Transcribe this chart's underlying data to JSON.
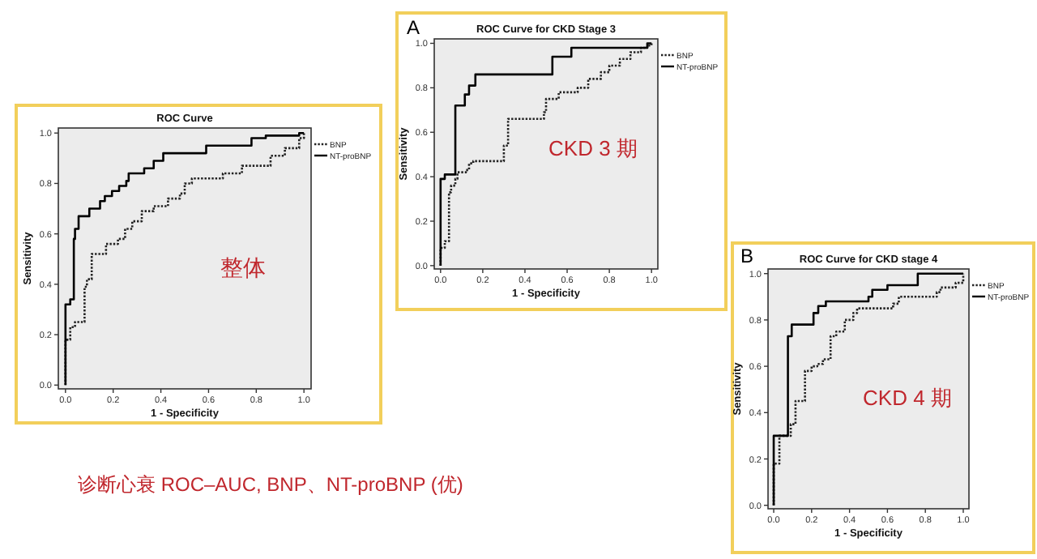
{
  "chart_data": [
    {
      "type": "step",
      "title": "ROC Curve",
      "xlabel": "1 - Specificity",
      "ylabel": "Sensitivity",
      "xlim": [
        -0.03,
        1.03
      ],
      "ylim": [
        -0.015,
        1.02
      ],
      "xticks": [
        {
          "value": 0,
          "label": "0.0"
        },
        {
          "value": 0.2,
          "label": "0.2"
        },
        {
          "value": 0.4,
          "label": "0.4"
        },
        {
          "value": 0.6,
          "label": "0.6"
        },
        {
          "value": 0.8,
          "label": "0.8"
        },
        {
          "value": 1,
          "label": "1.0"
        }
      ],
      "yticks": [
        {
          "value": 0,
          "label": "0.0"
        },
        {
          "value": 0.2,
          "label": "0.2"
        },
        {
          "value": 0.4,
          "label": "0.4"
        },
        {
          "value": 0.6,
          "label": "0.6"
        },
        {
          "value": 0.8,
          "label": "0.8"
        },
        {
          "value": 1,
          "label": "1.0"
        }
      ],
      "grid": false,
      "legend": "right",
      "series": [
        {
          "name": "BNP",
          "color": "#222222",
          "line_style": "dotted",
          "x": [
            0,
            0,
            0.02,
            0.04,
            0.08,
            0.09,
            0.11,
            0.17,
            0.22,
            0.25,
            0.28,
            0.32,
            0.37,
            0.43,
            0.48,
            0.5,
            0.53,
            0.66,
            0.74,
            0.86,
            0.92,
            0.98,
            1
          ],
          "values": [
            0,
            0.18,
            0.23,
            0.25,
            0.39,
            0.42,
            0.52,
            0.56,
            0.58,
            0.62,
            0.65,
            0.69,
            0.71,
            0.74,
            0.76,
            0.8,
            0.82,
            0.84,
            0.87,
            0.91,
            0.94,
            0.98,
            1
          ]
        },
        {
          "name": "NT-proBNP",
          "color": "#000000",
          "line_style": "solid",
          "x": [
            0,
            0,
            0.02,
            0.035,
            0.04,
            0.055,
            0.1,
            0.145,
            0.165,
            0.195,
            0.225,
            0.255,
            0.265,
            0.33,
            0.37,
            0.41,
            0.59,
            0.78,
            0.84,
            0.98,
            1
          ],
          "values": [
            0,
            0.32,
            0.34,
            0.58,
            0.62,
            0.67,
            0.7,
            0.73,
            0.75,
            0.77,
            0.79,
            0.81,
            0.84,
            0.86,
            0.89,
            0.92,
            0.95,
            0.98,
            0.99,
            1,
            1
          ]
        }
      ],
      "annotations": [
        "整体",
        "诊断心衰 ROC–AUC, BNP、NT-proBNP (优)"
      ]
    },
    {
      "type": "step",
      "title": "ROC Curve for CKD Stage 3",
      "xlabel": "1 - Specificity",
      "ylabel": "Sensitivity",
      "xlim": [
        -0.03,
        1.03
      ],
      "ylim": [
        -0.015,
        1.02
      ],
      "xticks": [
        {
          "value": 0,
          "label": "0.0"
        },
        {
          "value": 0.2,
          "label": "0.2"
        },
        {
          "value": 0.4,
          "label": "0.4"
        },
        {
          "value": 0.6,
          "label": "0.6"
        },
        {
          "value": 0.8,
          "label": "0.8"
        },
        {
          "value": 1,
          "label": "1.0"
        }
      ],
      "yticks": [
        {
          "value": 0,
          "label": "0.0"
        },
        {
          "value": 0.2,
          "label": "0.2"
        },
        {
          "value": 0.4,
          "label": "0.4"
        },
        {
          "value": 0.6,
          "label": "0.6"
        },
        {
          "value": 0.8,
          "label": "0.8"
        },
        {
          "value": 1,
          "label": "1.0"
        }
      ],
      "grid": false,
      "legend": "right",
      "series": [
        {
          "name": "BNP",
          "color": "#222222",
          "line_style": "dotted",
          "x": [
            0,
            0,
            0.02,
            0.04,
            0.05,
            0.07,
            0.08,
            0.12,
            0.135,
            0.155,
            0.3,
            0.32,
            0.49,
            0.5,
            0.56,
            0.65,
            0.7,
            0.76,
            0.8,
            0.85,
            0.9,
            0.95,
            0.98,
            1
          ],
          "values": [
            0,
            0.08,
            0.11,
            0.33,
            0.36,
            0.39,
            0.42,
            0.43,
            0.46,
            0.47,
            0.54,
            0.66,
            0.69,
            0.75,
            0.78,
            0.8,
            0.84,
            0.87,
            0.9,
            0.93,
            0.96,
            0.98,
            0.99,
            1
          ]
        },
        {
          "name": "NT-proBNP",
          "color": "#000000",
          "line_style": "solid",
          "x": [
            0,
            0,
            0.02,
            0.07,
            0.115,
            0.135,
            0.165,
            0.53,
            0.62,
            0.98,
            1
          ],
          "values": [
            0,
            0.39,
            0.41,
            0.72,
            0.77,
            0.81,
            0.86,
            0.94,
            0.98,
            1,
            1
          ]
        }
      ],
      "annotations": [
        "A",
        "CKD 3 期"
      ]
    },
    {
      "type": "step",
      "title": "ROC Curve for CKD stage 4",
      "xlabel": "1 - Specificity",
      "ylabel": "Sensitivity",
      "xlim": [
        -0.03,
        1.03
      ],
      "ylim": [
        -0.015,
        1.02
      ],
      "xticks": [
        {
          "value": 0,
          "label": "0.0"
        },
        {
          "value": 0.2,
          "label": "0.2"
        },
        {
          "value": 0.4,
          "label": "0.4"
        },
        {
          "value": 0.6,
          "label": "0.6"
        },
        {
          "value": 0.8,
          "label": "0.8"
        },
        {
          "value": 1,
          "label": "1.0"
        }
      ],
      "yticks": [
        {
          "value": 0,
          "label": "0.0"
        },
        {
          "value": 0.2,
          "label": "0.2"
        },
        {
          "value": 0.4,
          "label": "0.4"
        },
        {
          "value": 0.6,
          "label": "0.6"
        },
        {
          "value": 0.8,
          "label": "0.8"
        },
        {
          "value": 1,
          "label": "1.0"
        }
      ],
      "grid": false,
      "legend": "right",
      "series": [
        {
          "name": "BNP",
          "color": "#222222",
          "line_style": "dotted",
          "x": [
            0,
            0,
            0.03,
            0.09,
            0.115,
            0.165,
            0.2,
            0.23,
            0.26,
            0.3,
            0.33,
            0.375,
            0.42,
            0.44,
            0.63,
            0.66,
            0.86,
            0.88,
            0.96,
            1
          ],
          "values": [
            0,
            0.18,
            0.3,
            0.35,
            0.45,
            0.58,
            0.6,
            0.61,
            0.63,
            0.73,
            0.75,
            0.8,
            0.83,
            0.85,
            0.87,
            0.9,
            0.92,
            0.94,
            0.96,
            1
          ]
        },
        {
          "name": "NT-proBNP",
          "color": "#000000",
          "line_style": "solid",
          "x": [
            0,
            0,
            0.075,
            0.095,
            0.21,
            0.235,
            0.275,
            0.5,
            0.52,
            0.6,
            0.76,
            1
          ],
          "values": [
            0,
            0.3,
            0.73,
            0.78,
            0.83,
            0.86,
            0.88,
            0.9,
            0.93,
            0.95,
            1,
            1
          ]
        }
      ],
      "annotations": [
        "B",
        "CKD 4 期"
      ]
    }
  ]
}
